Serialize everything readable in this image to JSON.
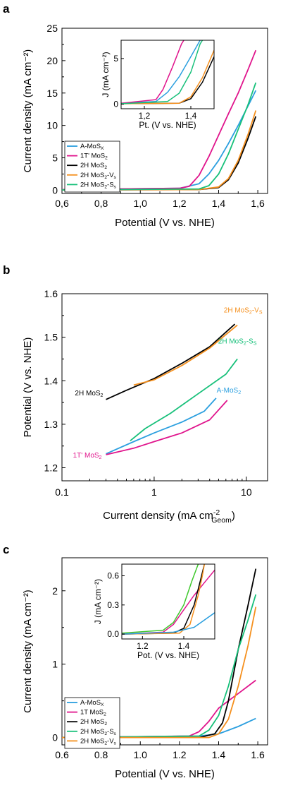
{
  "colors": {
    "A-MoSx": "#2b9fdf",
    "1T-MoS2": "#e0148c",
    "2H-MoS2": "#000000",
    "2H-MoS2-Vs": "#f5901e",
    "2H-MoS2-Ss": "#17c07a",
    "green-inset": "#3ec82c"
  },
  "chart_data": [
    {
      "panel": "a",
      "type": "line",
      "xlabel": "Potential (V vs. NHE)",
      "ylabel": "Current density (mA cm⁻²)",
      "xlim": [
        0.6,
        1.65
      ],
      "ylim": [
        -0.5,
        25
      ],
      "x_ticks": [
        0.6,
        0.8,
        1.0,
        1.2,
        1.4,
        1.6
      ],
      "x_tick_labels": [
        "0,6",
        "0,8",
        "1,0",
        "1,2",
        "1,4",
        "1,6"
      ],
      "y_ticks": [
        0,
        5,
        10,
        15,
        20,
        25
      ],
      "y_tick_labels": [
        "0",
        "5",
        "10",
        "15",
        "20",
        "25"
      ],
      "legend_position": "bottom-left",
      "series": [
        {
          "name": "A-MoSX",
          "key": "A-MoSx",
          "points": [
            [
              0.6,
              0.1
            ],
            [
              1.2,
              0.3
            ],
            [
              1.3,
              1.0
            ],
            [
              1.35,
              2.5
            ],
            [
              1.4,
              4.6
            ],
            [
              1.45,
              7.2
            ],
            [
              1.5,
              10.0
            ],
            [
              1.55,
              13.0
            ],
            [
              1.59,
              15.4
            ]
          ]
        },
        {
          "name": "1T' MoS2",
          "key": "1T-MoS2",
          "points": [
            [
              0.6,
              0.1
            ],
            [
              1.2,
              0.3
            ],
            [
              1.25,
              0.6
            ],
            [
              1.3,
              2.3
            ],
            [
              1.35,
              5.2
            ],
            [
              1.4,
              8.5
            ],
            [
              1.45,
              11.8
            ],
            [
              1.5,
              15.0
            ],
            [
              1.55,
              18.6
            ],
            [
              1.59,
              21.6
            ]
          ]
        },
        {
          "name": "2H MoS2",
          "key": "2H-MoS2",
          "points": [
            [
              0.6,
              0.05
            ],
            [
              1.3,
              0.1
            ],
            [
              1.4,
              0.4
            ],
            [
              1.45,
              1.6
            ],
            [
              1.5,
              4.2
            ],
            [
              1.55,
              8.0
            ],
            [
              1.59,
              11.4
            ]
          ]
        },
        {
          "name": "2H MoS2-Vs",
          "key": "2H-MoS2-Vs",
          "points": [
            [
              0.6,
              0.05
            ],
            [
              1.3,
              0.1
            ],
            [
              1.4,
              0.5
            ],
            [
              1.45,
              1.8
            ],
            [
              1.5,
              4.6
            ],
            [
              1.55,
              8.6
            ],
            [
              1.59,
              12.3
            ]
          ]
        },
        {
          "name": "2H MoS2-Ss",
          "key": "2H-MoS2-Ss",
          "points": [
            [
              0.6,
              0.05
            ],
            [
              1.3,
              0.2
            ],
            [
              1.35,
              0.7
            ],
            [
              1.4,
              2.5
            ],
            [
              1.45,
              5.6
            ],
            [
              1.5,
              9.4
            ],
            [
              1.55,
              13.2
            ],
            [
              1.59,
              16.6
            ]
          ]
        }
      ],
      "inset": {
        "xlabel": "Pt. (V vs. NHE)",
        "ylabel": "J (mA cm⁻²)",
        "xlim": [
          1.1,
          1.5
        ],
        "ylim": [
          -0.5,
          7
        ],
        "x_tick_labels": [
          "1,2",
          "1,4"
        ],
        "y_tick_labels": [
          "0",
          "5"
        ],
        "series": [
          {
            "key": "A-MoSx",
            "points": [
              [
                1.1,
                0.1
              ],
              [
                1.25,
                0.3
              ],
              [
                1.3,
                1.3
              ],
              [
                1.35,
                3.0
              ],
              [
                1.4,
                5.2
              ],
              [
                1.44,
                7
              ]
            ]
          },
          {
            "key": "1T-MoS2",
            "points": [
              [
                1.1,
                0.1
              ],
              [
                1.25,
                0.5
              ],
              [
                1.28,
                1.6
              ],
              [
                1.32,
                4.0
              ],
              [
                1.36,
                6.6
              ],
              [
                1.37,
                7
              ]
            ]
          },
          {
            "key": "2H-MoS2",
            "points": [
              [
                1.1,
                0.05
              ],
              [
                1.35,
                0.1
              ],
              [
                1.4,
                0.6
              ],
              [
                1.45,
                2.4
              ],
              [
                1.5,
                5.2
              ]
            ]
          },
          {
            "key": "2H-MoS2-Vs",
            "points": [
              [
                1.1,
                0.05
              ],
              [
                1.35,
                0.1
              ],
              [
                1.4,
                0.8
              ],
              [
                1.45,
                2.9
              ],
              [
                1.5,
                5.9
              ]
            ]
          },
          {
            "key": "2H-MoS2-Ss",
            "points": [
              [
                1.1,
                0.05
              ],
              [
                1.3,
                0.3
              ],
              [
                1.35,
                1.2
              ],
              [
                1.4,
                3.5
              ],
              [
                1.44,
                6.6
              ],
              [
                1.45,
                7
              ]
            ]
          }
        ]
      }
    },
    {
      "panel": "b",
      "type": "line",
      "xscale": "log",
      "xlabel": "Current density (mA cm",
      "xlabel_sup": "-2",
      "xlabel_sub": "Geom",
      "xlabel_end": ")",
      "ylabel": "Potential (V vs. NHE)",
      "xlim": [
        0.1,
        17
      ],
      "ylim": [
        1.17,
        1.6
      ],
      "x_ticks": [
        0.1,
        1,
        10
      ],
      "x_tick_labels": [
        "0.1",
        "1",
        "10"
      ],
      "y_ticks": [
        1.2,
        1.3,
        1.4,
        1.5,
        1.6
      ],
      "y_tick_labels": [
        "1.2",
        "1.3",
        "1.4",
        "1.5",
        "1.6"
      ],
      "series": [
        {
          "name": "2H MoS2",
          "key": "2H-MoS2",
          "label": {
            "main": "2H MoS",
            "sub": "2",
            "rest": ""
          },
          "points": [
            [
              0.3,
              1.357
            ],
            [
              0.5,
              1.378
            ],
            [
              1,
              1.405
            ],
            [
              2,
              1.44
            ],
            [
              4,
              1.478
            ],
            [
              7.5,
              1.53
            ]
          ]
        },
        {
          "name": "2H MoS2-Vs",
          "key": "2H-MoS2-Vs",
          "label": {
            "main": "2H MoS",
            "sub": "2",
            "rest": "-V",
            "sub2": "S"
          },
          "points": [
            [
              0.6,
              1.39
            ],
            [
              1,
              1.402
            ],
            [
              2,
              1.435
            ],
            [
              4,
              1.475
            ],
            [
              8,
              1.528
            ]
          ]
        },
        {
          "name": "2H MoS2-Ss",
          "key": "2H-MoS2-Ss",
          "label": {
            "main": "2H MoS",
            "sub": "2",
            "rest": "-S",
            "sub2": "S"
          },
          "points": [
            [
              0.55,
              1.262
            ],
            [
              0.8,
              1.29
            ],
            [
              1.5,
              1.325
            ],
            [
              3,
              1.37
            ],
            [
              6,
              1.415
            ],
            [
              8,
              1.45
            ]
          ]
        },
        {
          "name": "A-MoS2",
          "key": "A-MoSx",
          "label": {
            "main": "A-MoS",
            "sub": "2",
            "rest": ""
          },
          "points": [
            [
              0.3,
              1.232
            ],
            [
              0.6,
              1.26
            ],
            [
              1,
              1.28
            ],
            [
              2,
              1.305
            ],
            [
              3.5,
              1.33
            ],
            [
              4.7,
              1.36
            ]
          ]
        },
        {
          "name": "1T' MoS2",
          "key": "1T-MoS2",
          "label": {
            "main": "1T' MoS",
            "sub": "2",
            "rest": ""
          },
          "points": [
            [
              0.3,
              1.23
            ],
            [
              0.6,
              1.245
            ],
            [
              1,
              1.26
            ],
            [
              2,
              1.28
            ],
            [
              4,
              1.31
            ],
            [
              6.2,
              1.355
            ]
          ]
        }
      ]
    },
    {
      "panel": "c",
      "type": "line",
      "xlabel": "Potential (V vs. NHE)",
      "ylabel": "Current density (mA cm⁻²)",
      "xlim": [
        0.6,
        1.65
      ],
      "ylim": [
        -0.1,
        2.45
      ],
      "x_ticks": [
        0.6,
        0.8,
        1.0,
        1.2,
        1.4,
        1.6
      ],
      "x_tick_labels": [
        "0.6",
        "0.8",
        "1.0",
        "1.2",
        "1.4",
        "1.6"
      ],
      "y_ticks": [
        0,
        1,
        2
      ],
      "y_tick_labels": [
        "0",
        "1",
        "2"
      ],
      "legend_position": "bottom-left",
      "series": [
        {
          "name": "A-MoSX",
          "key": "A-MoSx",
          "points": [
            [
              0.6,
              0.0
            ],
            [
              1.3,
              0.02
            ],
            [
              1.4,
              0.05
            ],
            [
              1.5,
              0.15
            ],
            [
              1.59,
              0.26
            ]
          ]
        },
        {
          "name": "1T MoS2",
          "key": "1T-MoS2",
          "points": [
            [
              0.6,
              0.0
            ],
            [
              1.25,
              0.02
            ],
            [
              1.3,
              0.08
            ],
            [
              1.35,
              0.22
            ],
            [
              1.4,
              0.4
            ],
            [
              1.5,
              0.6
            ],
            [
              1.59,
              0.78
            ]
          ]
        },
        {
          "name": "2H MoS2",
          "key": "2H-MoS2",
          "points": [
            [
              0.6,
              0.0
            ],
            [
              1.3,
              0.0
            ],
            [
              1.38,
              0.05
            ],
            [
              1.42,
              0.2
            ],
            [
              1.45,
              0.5
            ],
            [
              1.5,
              1.2
            ],
            [
              1.55,
              1.8
            ],
            [
              1.59,
              2.3
            ]
          ]
        },
        {
          "name": "2H MoS2-Ss",
          "key": "2H-MoS2-Ss",
          "points": [
            [
              0.6,
              0.0
            ],
            [
              1.3,
              0.02
            ],
            [
              1.35,
              0.1
            ],
            [
              1.4,
              0.3
            ],
            [
              1.45,
              0.7
            ],
            [
              1.5,
              1.2
            ],
            [
              1.55,
              1.6
            ],
            [
              1.59,
              1.95
            ]
          ]
        },
        {
          "name": "2H MoS2-Vs",
          "key": "2H-MoS2-Vs",
          "points": [
            [
              0.6,
              0.0
            ],
            [
              1.35,
              0.0
            ],
            [
              1.4,
              0.05
            ],
            [
              1.45,
              0.25
            ],
            [
              1.5,
              0.7
            ],
            [
              1.55,
              1.25
            ],
            [
              1.59,
              1.78
            ]
          ]
        }
      ],
      "inset": {
        "xlabel": "Pot. (V vs. NHE)",
        "ylabel": "J (mA cm⁻²)",
        "xlim": [
          1.1,
          1.55
        ],
        "ylim": [
          -0.05,
          0.72
        ],
        "x_tick_labels": [
          "1.2",
          "1.4"
        ],
        "y_tick_labels": [
          "0.0",
          "0.3",
          "0.6"
        ],
        "series": [
          {
            "key": "green-inset",
            "points": [
              [
                1.1,
                0.01
              ],
              [
                1.3,
                0.04
              ],
              [
                1.35,
                0.12
              ],
              [
                1.4,
                0.3
              ],
              [
                1.44,
                0.55
              ],
              [
                1.47,
                0.72
              ]
            ]
          },
          {
            "key": "1T-MoS2",
            "points": [
              [
                1.1,
                0.0
              ],
              [
                1.3,
                0.02
              ],
              [
                1.35,
                0.1
              ],
              [
                1.4,
                0.25
              ],
              [
                1.45,
                0.4
              ],
              [
                1.5,
                0.53
              ],
              [
                1.55,
                0.66
              ]
            ]
          },
          {
            "key": "2H-MoS2",
            "points": [
              [
                1.1,
                0.0
              ],
              [
                1.35,
                0.01
              ],
              [
                1.4,
                0.06
              ],
              [
                1.45,
                0.3
              ],
              [
                1.48,
                0.55
              ],
              [
                1.5,
                0.72
              ]
            ]
          },
          {
            "key": "2H-MoS2-Vs",
            "points": [
              [
                1.1,
                0.0
              ],
              [
                1.38,
                0.01
              ],
              [
                1.43,
                0.1
              ],
              [
                1.47,
                0.4
              ],
              [
                1.49,
                0.6
              ],
              [
                1.5,
                0.72
              ]
            ]
          },
          {
            "key": "A-MoSx",
            "points": [
              [
                1.1,
                0.0
              ],
              [
                1.35,
                0.02
              ],
              [
                1.45,
                0.07
              ],
              [
                1.55,
                0.22
              ]
            ]
          }
        ]
      }
    }
  ],
  "panel_a": {
    "letter": "a",
    "legend": [
      {
        "key": "A-MoSx",
        "main": "A-MoS",
        "sub": "X",
        "rest": ""
      },
      {
        "key": "1T-MoS2",
        "main": "1T' MoS",
        "sub": "2",
        "rest": ""
      },
      {
        "key": "2H-MoS2",
        "main": "2H MoS",
        "sub": "2",
        "rest": ""
      },
      {
        "key": "2H-MoS2-Vs",
        "main": "2H MoS",
        "sub": "2",
        "rest": "-V",
        "sub2": "s"
      },
      {
        "key": "2H-MoS2-Ss",
        "main": "2H MoS",
        "sub": "2",
        "rest": "-S",
        "sub2": "s"
      }
    ]
  },
  "panel_b": {
    "letter": "b"
  },
  "panel_c": {
    "letter": "c",
    "legend": [
      {
        "key": "A-MoSx",
        "main": "A-MoS",
        "sub": "X",
        "rest": ""
      },
      {
        "key": "1T-MoS2",
        "main": "1T MoS",
        "sub": "2",
        "rest": ""
      },
      {
        "key": "2H-MoS2",
        "main": "2H MoS",
        "sub": "2",
        "rest": ""
      },
      {
        "key": "2H-MoS2-Ss",
        "main": "2H MoS",
        "sub": "2",
        "rest": "-S",
        "sub2": "s"
      },
      {
        "key": "2H-MoS2-Vs",
        "main": "2H MoS",
        "sub": "2",
        "rest": "-V",
        "sub2": "s"
      }
    ]
  }
}
